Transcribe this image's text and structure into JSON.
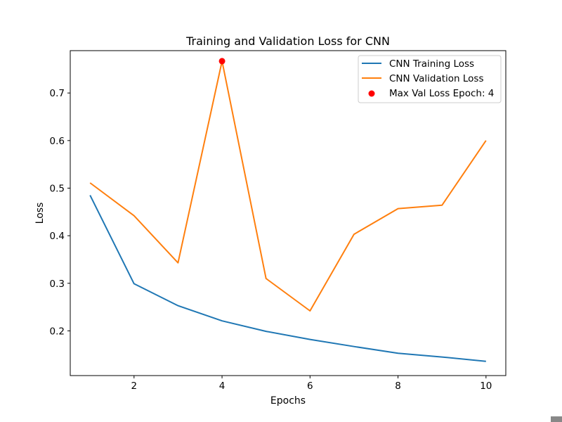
{
  "chart_data": {
    "type": "line",
    "title": "Training and Validation Loss for CNN",
    "xlabel": "Epochs",
    "ylabel": "Loss",
    "x": [
      1,
      2,
      3,
      4,
      5,
      6,
      7,
      8,
      9,
      10
    ],
    "xlim": [
      0.55,
      10.45
    ],
    "ylim": [
      0.106,
      0.789
    ],
    "x_ticks": [
      "2",
      "4",
      "6",
      "8",
      "10"
    ],
    "y_ticks": [
      "0.2",
      "0.3",
      "0.4",
      "0.5",
      "0.6",
      "0.7"
    ],
    "grid": false,
    "legend_position": "top-right",
    "series": [
      {
        "name": "CNN Training Loss",
        "color": "#1f77b4",
        "values": [
          0.485,
          0.299,
          0.253,
          0.221,
          0.199,
          0.182,
          0.167,
          0.153,
          0.145,
          0.136
        ]
      },
      {
        "name": "CNN Validation Loss",
        "color": "#ff7f0e",
        "values": [
          0.511,
          0.442,
          0.343,
          0.767,
          0.31,
          0.242,
          0.403,
          0.457,
          0.464,
          0.6
        ]
      }
    ],
    "highlight": {
      "label": "Max Val Loss Epoch: 4",
      "x": 4,
      "y": 0.767,
      "color": "#ff0000"
    }
  }
}
